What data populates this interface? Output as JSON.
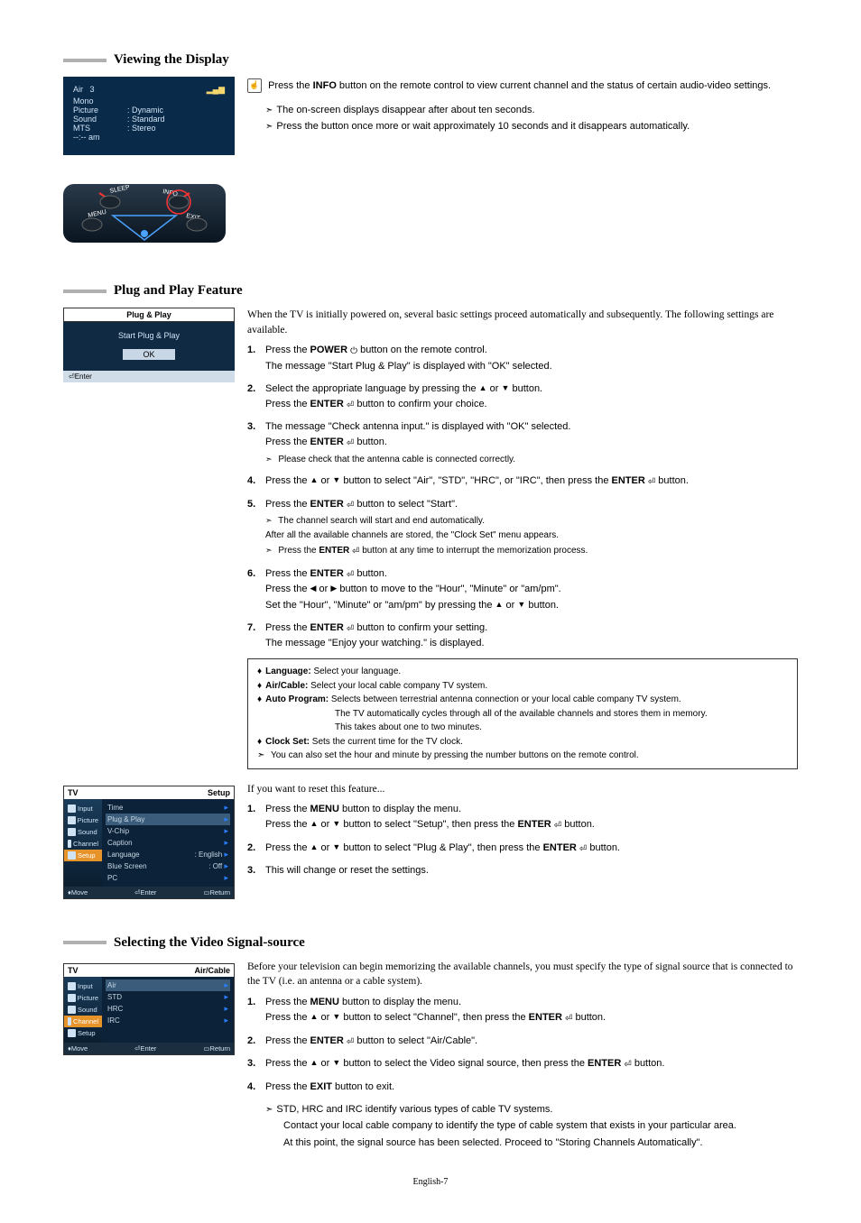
{
  "page_number": "English-7",
  "section1": {
    "title": "Viewing the Display",
    "osd": {
      "ch_label": "Air",
      "ch_num": "3",
      "mono": "Mono",
      "rows": [
        {
          "k": "Picture",
          "v": ": Dynamic"
        },
        {
          "k": "Sound",
          "v": ": Standard"
        },
        {
          "k": "MTS",
          "v": ": Stereo"
        }
      ],
      "time": "--:--  am"
    },
    "remote_labels": {
      "sleep": "SLEEP",
      "info": "INFO",
      "menu": "MENU",
      "exit": "EXIT"
    },
    "info_line": "Press the INFO button on the remote control to view current channel and the status of certain audio-video settings.",
    "bullets": [
      "The on-screen displays disappear after about ten seconds.",
      "Press the button once more or wait approximately 10 seconds and it disappears automatically."
    ]
  },
  "section2": {
    "title": "Plug and Play Feature",
    "pp_box": {
      "title": "Plug & Play",
      "body": "Start Plug & Play",
      "ok": "OK",
      "footer": "⏎Enter"
    },
    "intro": "When the TV is initially powered on, several basic settings proceed automatically and subsequently. The following settings are available.",
    "steps": [
      {
        "n": "1.",
        "lines": [
          "Press the <b>POWER</b> <span class='power-icon'>⏻</span> button on the remote control.",
          "The message \"Start Plug & Play\" is displayed with \"OK\" selected."
        ]
      },
      {
        "n": "2.",
        "lines": [
          "Select the appropriate language by pressing the <span class='arrow-btn'>▲</span> or <span class='arrow-btn'>▼</span> button.",
          "Press the <b>ENTER</b> <span class='enter-icon'>⏎</span> button to confirm your choice."
        ]
      },
      {
        "n": "3.",
        "lines": [
          "The message \"Check antenna input.\" is displayed with \"OK\" selected.",
          "Press the <b>ENTER</b> <span class='enter-icon'>⏎</span> button."
        ],
        "subs": [
          "Please check that the antenna cable is connected correctly."
        ]
      },
      {
        "n": "4.",
        "lines": [
          "Press the <span class='arrow-btn'>▲</span> or <span class='arrow-btn'>▼</span> button to select \"Air\", \"STD\", \"HRC\", or \"IRC\", then press the <b>ENTER</b> <span class='enter-icon'>⏎</span> button."
        ]
      },
      {
        "n": "5.",
        "lines": [
          "Press the <b>ENTER</b> <span class='enter-icon'>⏎</span> button to select \"Start\"."
        ],
        "subs": [
          "The channel search will start and end automatically.<br>After all the available channels are stored, the \"Clock Set\" menu appears.",
          "Press the <b>ENTER</b> <span class='enter-icon'>⏎</span> button at any time to interrupt the memorization process."
        ]
      },
      {
        "n": "6.",
        "lines": [
          "Press the <b>ENTER</b> <span class='enter-icon'>⏎</span> button.",
          "Press the <span class='arrow-btn'>◀</span> or <span class='arrow-btn'>▶</span> button to move to the \"Hour\", \"Minute\" or \"am/pm\".",
          "Set the \"Hour\", \"Minute\" or \"am/pm\" by pressing the <span class='arrow-btn'>▲</span> or <span class='arrow-btn'>▼</span> button."
        ]
      },
      {
        "n": "7.",
        "lines": [
          "Press the <b>ENTER</b> <span class='enter-icon'>⏎</span> button to confirm your setting.",
          "The message \"Enjoy your watching.\" is displayed."
        ]
      }
    ],
    "notes": [
      "<b>Language:</b> Select your language.",
      "<b>Air/Cable:</b> Select your local cable company TV system.",
      "<b>Auto Program:</b> Selects between terrestrial antenna connection or your local cable company TV system.<br><span style='margin-left:86px;display:inline-block'>The TV automatically cycles through all of the available channels and stores them in memory.</span><br><span style='margin-left:86px;display:inline-block'>This takes about one to two minutes.</span>",
      "<b>Clock Set:</b> Sets the current time for the TV clock."
    ],
    "notes_tail": "You can also set the hour and minute by pressing the number buttons on the remote control.",
    "reset_intro": "If you want to reset this feature...",
    "setup_menu": {
      "header_left": "TV",
      "header_right": "Setup",
      "left_items": [
        "Input",
        "Picture",
        "Sound",
        "Channel",
        "Setup"
      ],
      "right_items": [
        {
          "label": "Time",
          "val": ""
        },
        {
          "label": "Plug & Play",
          "val": "",
          "hi": true
        },
        {
          "label": "V-Chip",
          "val": ""
        },
        {
          "label": "Caption",
          "val": ""
        },
        {
          "label": "Language",
          "val": ": English"
        },
        {
          "label": "Blue Screen",
          "val": ": Off"
        },
        {
          "label": "PC",
          "val": ""
        }
      ],
      "footer": {
        "move": "♦Move",
        "enter": "⏎Enter",
        "ret": "▭Return"
      }
    },
    "reset_steps": [
      {
        "n": "1.",
        "lines": [
          "Press the <b>MENU</b> button to display the menu.",
          "Press the <span class='arrow-btn'>▲</span> or <span class='arrow-btn'>▼</span> button to select \"Setup\", then press the <b>ENTER</b> <span class='enter-icon'>⏎</span> button."
        ]
      },
      {
        "n": "2.",
        "lines": [
          "Press the <span class='arrow-btn'>▲</span> or <span class='arrow-btn'>▼</span> button to select \"Plug & Play\", then press the <b>ENTER</b> <span class='enter-icon'>⏎</span> button."
        ]
      },
      {
        "n": "3.",
        "lines": [
          "This will change or reset the settings."
        ]
      }
    ]
  },
  "section3": {
    "title": "Selecting the Video Signal-source",
    "menu": {
      "header_left": "TV",
      "header_right": "Air/Cable",
      "left_items": [
        "Input",
        "Picture",
        "Sound",
        "Channel",
        "Setup"
      ],
      "right_items": [
        {
          "label": "Air",
          "hi": true
        },
        {
          "label": "STD"
        },
        {
          "label": "HRC"
        },
        {
          "label": "IRC"
        }
      ],
      "footer": {
        "move": "♦Move",
        "enter": "⏎Enter",
        "ret": "▭Return"
      }
    },
    "intro": "Before your television can begin memorizing the available channels, you must specify the type of signal source that is connected to the TV (i.e. an antenna or a cable system).",
    "steps": [
      {
        "n": "1.",
        "lines": [
          "Press the <b>MENU</b> button to display the menu.",
          "Press the <span class='arrow-btn'>▲</span> or <span class='arrow-btn'>▼</span> button to select \"Channel\", then press the <b>ENTER</b> <span class='enter-icon'>⏎</span> button."
        ]
      },
      {
        "n": "2.",
        "lines": [
          "Press the <b>ENTER</b> <span class='enter-icon'>⏎</span> button to select \"Air/Cable\"."
        ]
      },
      {
        "n": "3.",
        "lines": [
          "Press the <span class='arrow-btn'>▲</span> or <span class='arrow-btn'>▼</span> button to select the Video signal source, then press the <b>ENTER</b> <span class='enter-icon'>⏎</span> button."
        ]
      },
      {
        "n": "4.",
        "lines": [
          "Press the <b>EXIT</b> button to exit."
        ]
      }
    ],
    "tail": [
      "STD, HRC and IRC identify various types of cable TV systems.",
      "Contact your local cable company to identify the type of cable system that exists in your particular area.",
      "At this point, the signal source has been selected. Proceed to \"Storing Channels Automatically\"."
    ]
  }
}
